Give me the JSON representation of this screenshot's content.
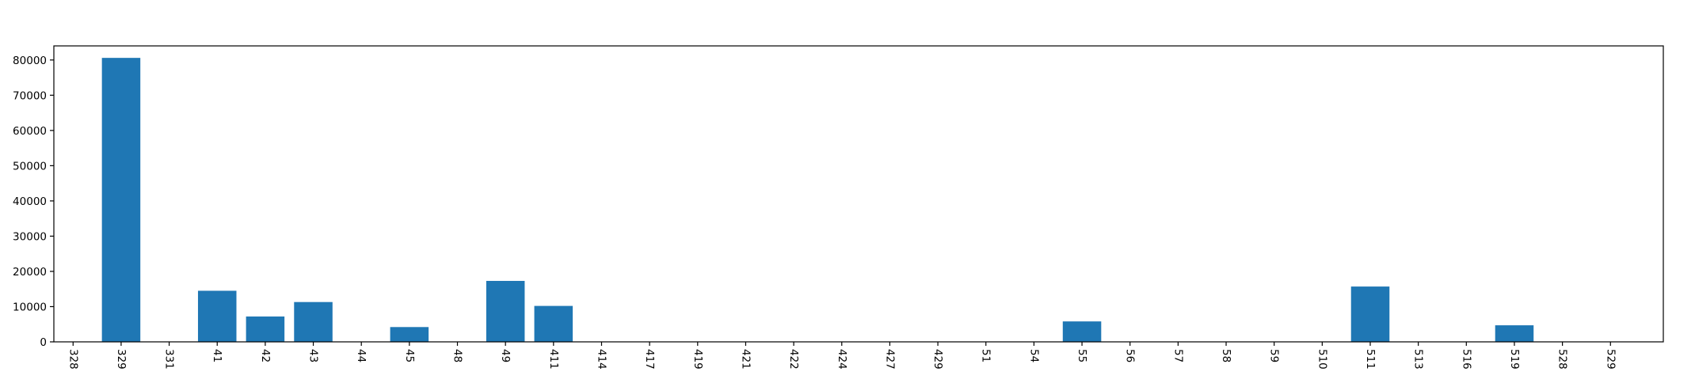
{
  "chart_data": {
    "type": "bar",
    "title": "",
    "xlabel": "",
    "ylabel": "",
    "categories": [
      "328",
      "329",
      "331",
      "41",
      "42",
      "43",
      "44",
      "45",
      "48",
      "49",
      "411",
      "414",
      "417",
      "419",
      "421",
      "422",
      "424",
      "427",
      "429",
      "51",
      "54",
      "55",
      "56",
      "57",
      "58",
      "59",
      "510",
      "511",
      "513",
      "516",
      "519",
      "528",
      "529"
    ],
    "values": [
      0,
      80600,
      0,
      14500,
      7200,
      11300,
      0,
      4200,
      0,
      17300,
      10200,
      0,
      0,
      0,
      0,
      0,
      0,
      0,
      0,
      0,
      0,
      5800,
      0,
      0,
      0,
      0,
      0,
      15700,
      0,
      0,
      4700,
      0,
      0
    ],
    "ylim": [
      0,
      84000
    ],
    "yticks": [
      0,
      10000,
      20000,
      30000,
      40000,
      50000,
      60000,
      70000,
      80000
    ],
    "xtick_rotation": "90 degrees (vertical)",
    "grid": false,
    "legend": "none",
    "bar_color": "#1f77b4"
  }
}
